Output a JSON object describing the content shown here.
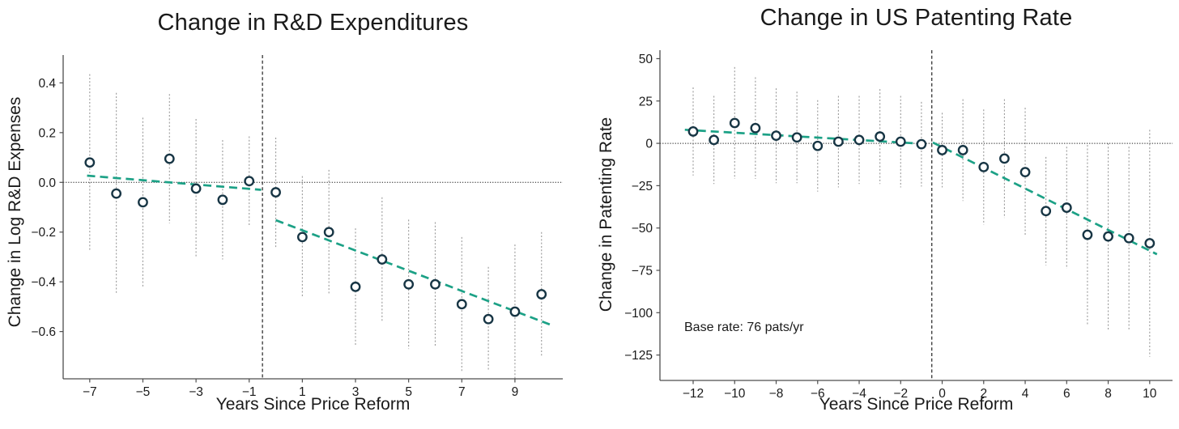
{
  "page": {
    "background": "#ffffff"
  },
  "colors": {
    "marker_stroke": "#173544",
    "marker_fill": "#ffffff",
    "trend": "#1ca186",
    "error_bar": "#999999",
    "zero_line": "#222222",
    "reform_line": "#333333",
    "spine": "#4d4d4d",
    "text": "#1a1a1a"
  },
  "chart_data": [
    {
      "type": "scatter",
      "title": "Change in R&D Expenditures",
      "xlabel": "Years Since Price Reform",
      "ylabel": "Change in Log R&D Expenses",
      "grid": false,
      "legend": null,
      "xlim": [
        -8,
        10.8
      ],
      "ylim": [
        -0.79,
        0.512
      ],
      "xticks": [
        -7,
        -5,
        -3,
        -1,
        1,
        3,
        5,
        7,
        9
      ],
      "xtick_labels": [
        "−7",
        "−5",
        "−3",
        "−1",
        "1",
        "3",
        "5",
        "7",
        "9"
      ],
      "yticks": [
        0.4,
        0.2,
        0,
        -0.2,
        -0.4,
        -0.6
      ],
      "ytick_labels": [
        "0.4",
        "0.2",
        "0.0",
        "−0.2",
        "−0.4",
        "−0.6"
      ],
      "x": [
        -7,
        -6,
        -5,
        -4,
        -3,
        -2,
        -1,
        0,
        1,
        2,
        3,
        4,
        5,
        6,
        7,
        8,
        9,
        10
      ],
      "values": [
        0.08,
        -0.045,
        -0.08,
        0.095,
        -0.025,
        -0.07,
        0.005,
        -0.04,
        -0.22,
        -0.2,
        -0.42,
        -0.31,
        -0.41,
        -0.41,
        -0.49,
        -0.55,
        -0.52,
        -0.45
      ],
      "ci_half": [
        0.355,
        0.405,
        0.34,
        0.26,
        0.28,
        0.24,
        0.18,
        0.22,
        0.245,
        0.25,
        0.235,
        0.25,
        0.26,
        0.25,
        0.27,
        0.21,
        0.27,
        0.25
      ],
      "zero_line_y": 0,
      "reform_line_x": -0.5,
      "trend_segments": [
        {
          "x1": -7.1,
          "y1": 0.027,
          "x2": -0.55,
          "y2": -0.03
        },
        {
          "x1": 0.0,
          "y1": -0.152,
          "x2": 10.4,
          "y2": -0.575
        }
      ],
      "annotation": ""
    },
    {
      "type": "scatter",
      "title": "Change in US Patenting Rate",
      "xlabel": "Years Since Price Reform",
      "ylabel": "Change in Patenting Rate",
      "grid": false,
      "legend": null,
      "xlim": [
        -13.6,
        11.1
      ],
      "ylim": [
        -140,
        55
      ],
      "xticks": [
        -12,
        -10,
        -8,
        -6,
        -4,
        -2,
        0,
        2,
        4,
        6,
        8,
        10
      ],
      "xtick_labels": [
        "−12",
        "−10",
        "−8",
        "−6",
        "−4",
        "−2",
        "0",
        "2",
        "4",
        "6",
        "8",
        "10"
      ],
      "yticks": [
        50,
        25,
        0,
        -25,
        -50,
        -75,
        -100,
        -125
      ],
      "ytick_labels": [
        "50",
        "25",
        "0",
        "−25",
        "−50",
        "−75",
        "−100",
        "−125"
      ],
      "x": [
        -12,
        -11,
        -10,
        -9,
        -8,
        -7,
        -6,
        -5,
        -4,
        -3,
        -2,
        -1,
        0,
        1,
        2,
        3,
        4,
        5,
        6,
        7,
        8,
        9,
        10
      ],
      "values": [
        7,
        2,
        12,
        9,
        4.5,
        3.5,
        -1.5,
        1,
        2,
        4,
        1,
        -0.5,
        -4,
        -4,
        -14,
        -9,
        -17,
        -40,
        -38,
        -54,
        -55,
        -56,
        -59
      ],
      "ci_half": [
        26,
        26,
        33,
        30,
        28,
        27,
        27,
        27,
        26,
        28,
        27,
        25,
        22,
        30,
        34,
        35,
        38,
        32,
        36,
        53,
        55,
        54,
        67
      ],
      "zero_line_y": 0,
      "reform_line_x": -0.5,
      "trend_segments": [
        {
          "x1": -12.4,
          "y1": 8.0,
          "x2": -0.6,
          "y2": -0.5
        },
        {
          "x1": -0.45,
          "y1": 0.5,
          "x2": 10.35,
          "y2": -65.5
        }
      ],
      "annotation": "Base rate: 76 pats/yr"
    }
  ]
}
